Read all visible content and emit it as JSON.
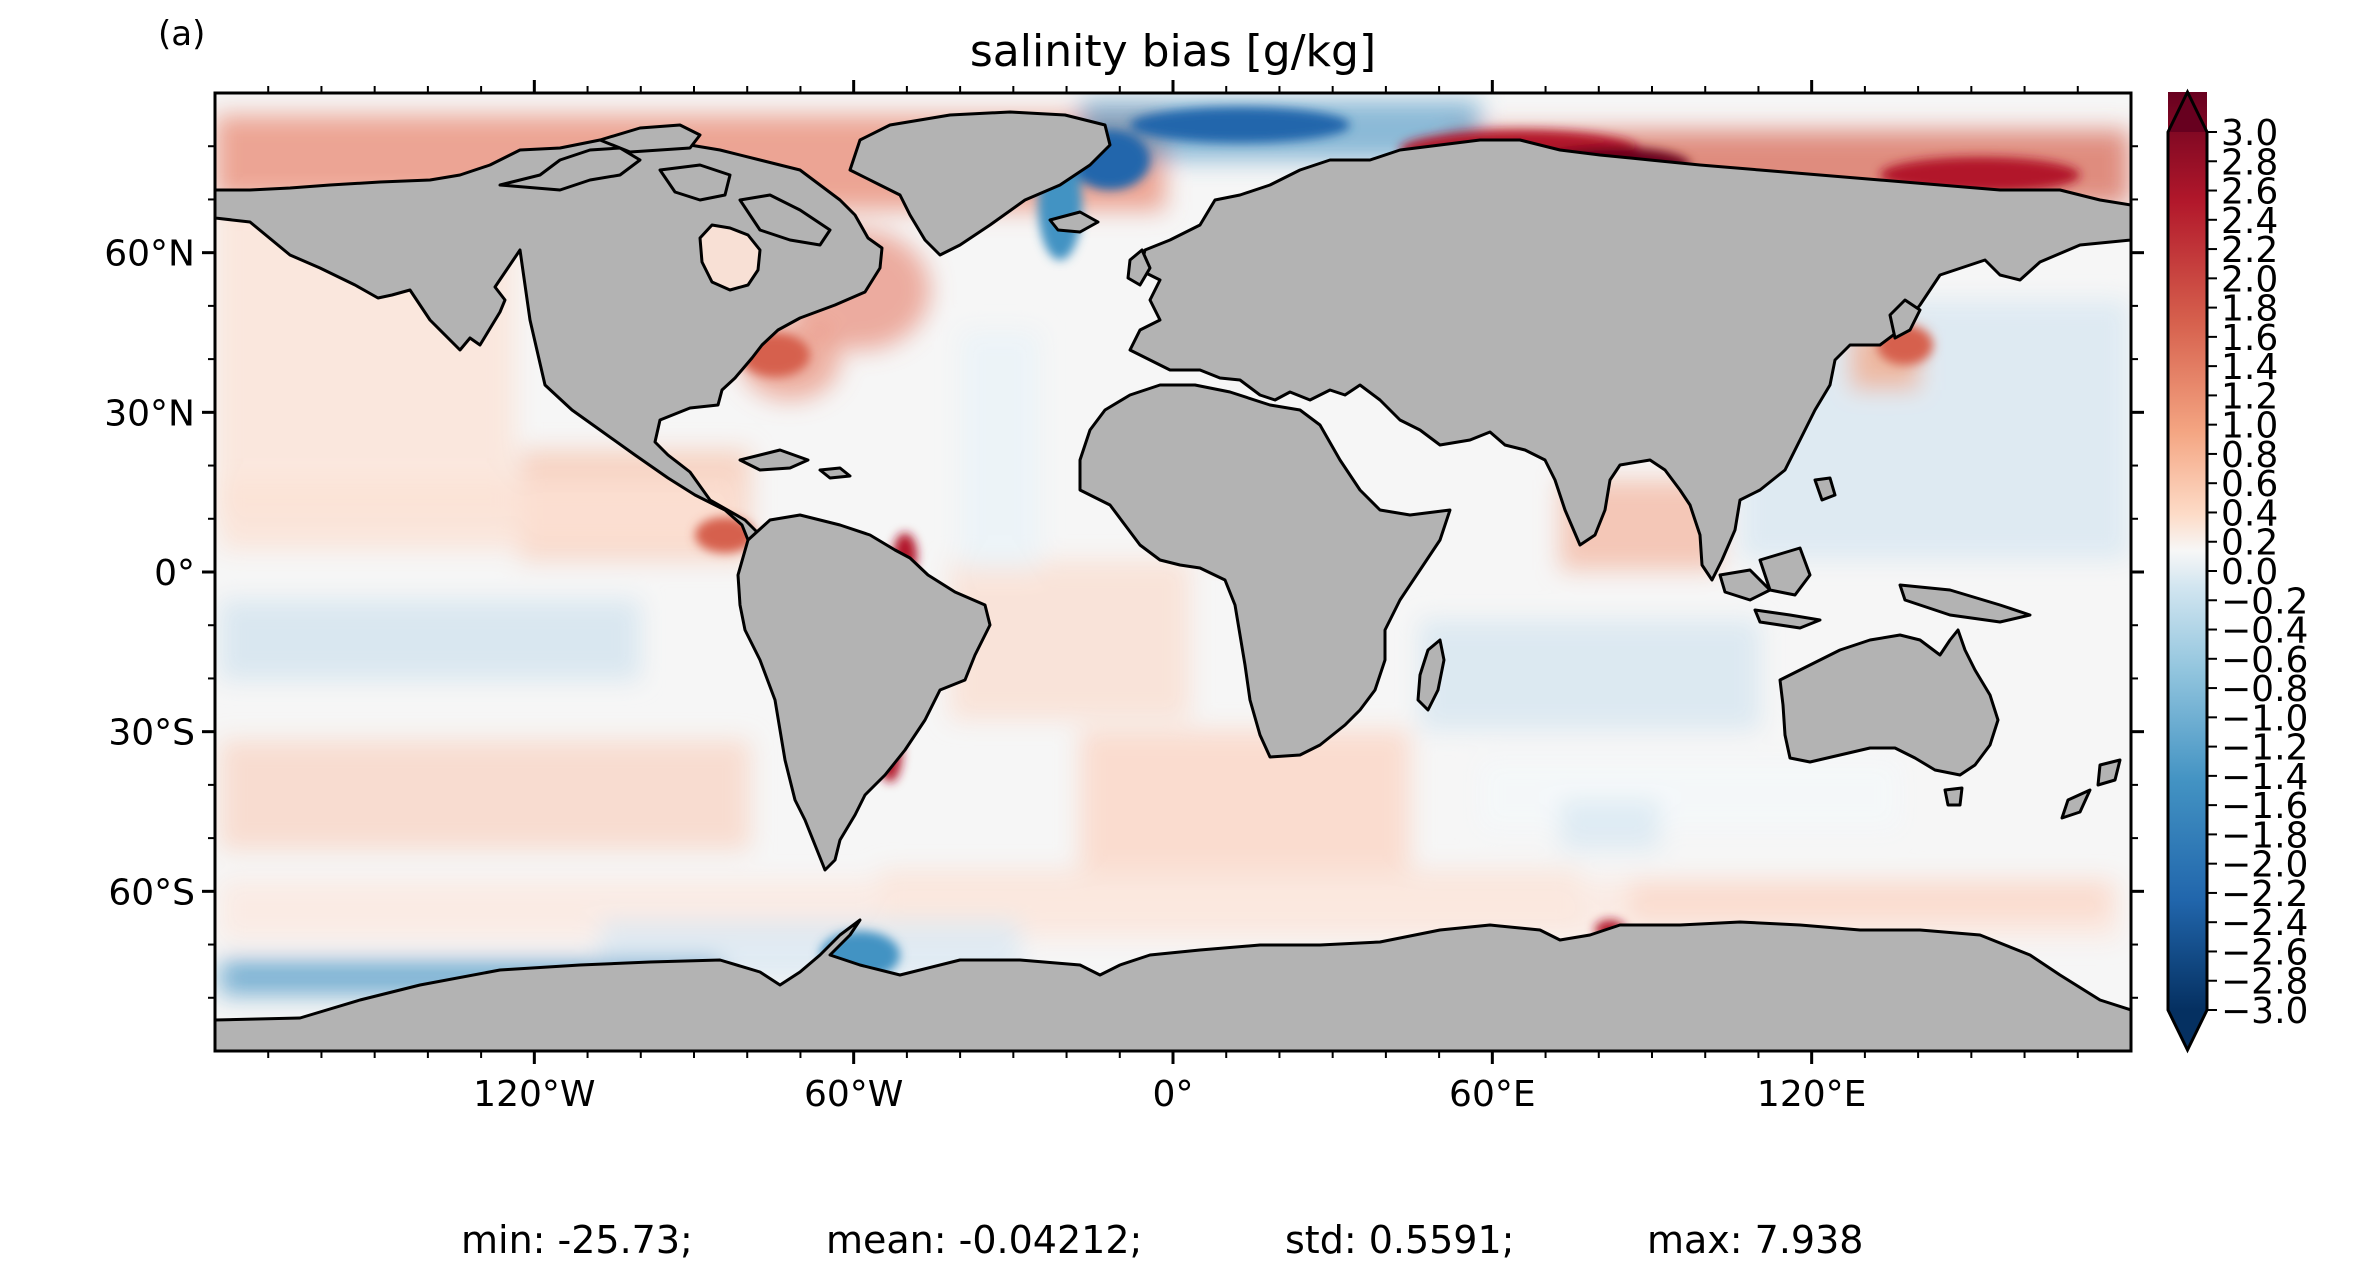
{
  "panel_label": "(a)",
  "title": "salinity bias [g/kg]",
  "lat_ticks": [
    {
      "value": 60,
      "label": "60°N"
    },
    {
      "value": 30,
      "label": "30°N"
    },
    {
      "value": 0,
      "label": "0°"
    },
    {
      "value": -30,
      "label": "30°S"
    },
    {
      "value": -60,
      "label": "60°S"
    }
  ],
  "lon_ticks": [
    {
      "value": -120,
      "label": "120°W"
    },
    {
      "value": -60,
      "label": "60°W"
    },
    {
      "value": 0,
      "label": "0°"
    },
    {
      "value": 60,
      "label": "60°E"
    },
    {
      "value": 120,
      "label": "120°E"
    }
  ],
  "colorbar": {
    "min": -3.0,
    "max": 3.0,
    "extend": "both",
    "colormap": "RdBu_r",
    "ticks": [
      "3.0",
      "2.8",
      "2.6",
      "2.4",
      "2.2",
      "2.0",
      "1.8",
      "1.6",
      "1.4",
      "1.2",
      "1.0",
      "0.8",
      "0.6",
      "0.4",
      "0.2",
      "0.0",
      "−0.2",
      "−0.4",
      "−0.6",
      "−0.8",
      "−1.0",
      "−1.2",
      "−1.4",
      "−1.6",
      "−1.8",
      "−2.0",
      "−2.2",
      "−2.4",
      "−2.6",
      "−2.8",
      "−3.0"
    ]
  },
  "colors": {
    "land": "#b3b3b3",
    "coast": "#000000",
    "dark_red": "#67001f",
    "red": "#d6604d",
    "light_red": "#f4a582",
    "white": "#f7f7f7",
    "light_blue": "#92c5de",
    "blue": "#4393c3",
    "dark_blue": "#053061"
  },
  "stats": {
    "min": "min: -25.73;",
    "mean": "mean: -0.04212;",
    "std": "std: 0.5591;",
    "max": "max: 7.938"
  }
}
